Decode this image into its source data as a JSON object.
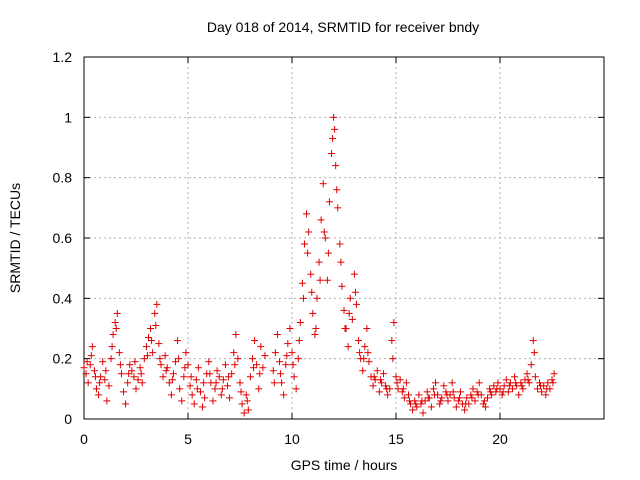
{
  "chart_data": {
    "type": "scatter",
    "title": "Day 018 of 2014, SRMTID for receiver bndy",
    "xlabel": "GPS time / hours",
    "ylabel": "SRMTID / TECUs",
    "xlim": [
      0,
      25
    ],
    "ylim": [
      0,
      1.2
    ],
    "x_ticks": [
      0,
      5,
      10,
      15,
      20
    ],
    "x_tick_labels": [
      "0",
      "5",
      "10",
      "15",
      "20"
    ],
    "y_ticks": [
      0,
      0.2,
      0.4,
      0.6,
      0.8,
      1.0,
      1.2
    ],
    "y_tick_labels": [
      "0",
      "0.2",
      "0.4",
      "0.6",
      "0.8",
      "1",
      "1.2"
    ],
    "grid": true,
    "marker": "+",
    "color": "#e00000",
    "series": [
      {
        "name": "SRMTID",
        "points": [
          [
            0.0,
            0.17
          ],
          [
            0.1,
            0.15
          ],
          [
            0.2,
            0.12
          ],
          [
            0.3,
            0.18
          ],
          [
            0.4,
            0.24
          ],
          [
            0.5,
            0.16
          ],
          [
            0.6,
            0.1
          ],
          [
            0.7,
            0.08
          ],
          [
            0.8,
            0.14
          ],
          [
            0.9,
            0.19
          ],
          [
            1.0,
            0.13
          ],
          [
            1.1,
            0.06
          ],
          [
            1.2,
            0.11
          ],
          [
            1.3,
            0.2
          ],
          [
            1.4,
            0.28
          ],
          [
            1.5,
            0.32
          ],
          [
            1.6,
            0.35
          ],
          [
            1.7,
            0.22
          ],
          [
            1.8,
            0.15
          ],
          [
            1.9,
            0.09
          ],
          [
            2.0,
            0.05
          ],
          [
            2.1,
            0.12
          ],
          [
            2.2,
            0.18
          ],
          [
            2.3,
            0.16
          ],
          [
            2.4,
            0.14
          ],
          [
            2.5,
            0.1
          ],
          [
            2.6,
            0.13
          ],
          [
            2.7,
            0.17
          ],
          [
            2.8,
            0.12
          ],
          [
            2.9,
            0.2
          ],
          [
            3.0,
            0.24
          ],
          [
            3.1,
            0.27
          ],
          [
            3.2,
            0.3
          ],
          [
            3.3,
            0.22
          ],
          [
            3.4,
            0.35
          ],
          [
            3.5,
            0.38
          ],
          [
            3.6,
            0.25
          ],
          [
            3.7,
            0.18
          ],
          [
            3.8,
            0.14
          ],
          [
            3.9,
            0.21
          ],
          [
            4.0,
            0.17
          ],
          [
            4.1,
            0.12
          ],
          [
            4.2,
            0.08
          ],
          [
            4.3,
            0.15
          ],
          [
            4.4,
            0.19
          ],
          [
            4.5,
            0.26
          ],
          [
            4.6,
            0.1
          ],
          [
            4.7,
            0.06
          ],
          [
            4.8,
            0.14
          ],
          [
            4.9,
            0.22
          ],
          [
            5.0,
            0.18
          ],
          [
            5.1,
            0.11
          ],
          [
            5.2,
            0.08
          ],
          [
            5.3,
            0.05
          ],
          [
            5.4,
            0.13
          ],
          [
            5.5,
            0.17
          ],
          [
            5.6,
            0.09
          ],
          [
            5.7,
            0.04
          ],
          [
            5.8,
            0.07
          ],
          [
            5.9,
            0.15
          ],
          [
            6.0,
            0.19
          ],
          [
            6.1,
            0.12
          ],
          [
            6.2,
            0.06
          ],
          [
            6.3,
            0.1
          ],
          [
            6.4,
            0.16
          ],
          [
            6.5,
            0.14
          ],
          [
            6.6,
            0.08
          ],
          [
            6.7,
            0.13
          ],
          [
            6.8,
            0.18
          ],
          [
            6.9,
            0.11
          ],
          [
            7.0,
            0.07
          ],
          [
            7.1,
            0.15
          ],
          [
            7.2,
            0.22
          ],
          [
            7.3,
            0.28
          ],
          [
            7.4,
            0.2
          ],
          [
            7.5,
            0.12
          ],
          [
            7.6,
            0.05
          ],
          [
            7.7,
            0.02
          ],
          [
            7.8,
            0.08
          ],
          [
            7.9,
            0.03
          ],
          [
            8.0,
            0.14
          ],
          [
            8.1,
            0.2
          ],
          [
            8.2,
            0.26
          ],
          [
            8.3,
            0.18
          ],
          [
            8.4,
            0.1
          ],
          [
            8.5,
            0.24
          ],
          [
            8.6,
            0.17
          ],
          [
            8.7,
            0.21
          ],
          [
            9.1,
            0.16
          ],
          [
            9.2,
            0.22
          ],
          [
            9.3,
            0.28
          ],
          [
            9.4,
            0.19
          ],
          [
            9.5,
            0.12
          ],
          [
            9.6,
            0.08
          ],
          [
            9.7,
            0.18
          ],
          [
            9.8,
            0.25
          ],
          [
            9.9,
            0.3
          ],
          [
            10.0,
            0.22
          ],
          [
            10.1,
            0.14
          ],
          [
            10.2,
            0.1
          ],
          [
            10.3,
            0.2
          ],
          [
            10.4,
            0.32
          ],
          [
            10.5,
            0.45
          ],
          [
            10.6,
            0.58
          ],
          [
            10.7,
            0.68
          ],
          [
            10.8,
            0.62
          ],
          [
            10.9,
            0.48
          ],
          [
            11.0,
            0.35
          ],
          [
            11.1,
            0.28
          ],
          [
            11.2,
            0.4
          ],
          [
            11.3,
            0.52
          ],
          [
            11.4,
            0.66
          ],
          [
            11.5,
            0.78
          ],
          [
            11.6,
            0.6
          ],
          [
            11.7,
            0.46
          ],
          [
            11.8,
            0.72
          ],
          [
            11.9,
            0.88
          ],
          [
            12.0,
            1.0
          ],
          [
            12.1,
            0.84
          ],
          [
            12.2,
            0.7
          ],
          [
            12.3,
            0.58
          ],
          [
            12.4,
            0.44
          ],
          [
            12.5,
            0.36
          ],
          [
            12.6,
            0.3
          ],
          [
            12.7,
            0.24
          ],
          [
            12.8,
            0.4
          ],
          [
            12.9,
            0.33
          ],
          [
            13.0,
            0.48
          ],
          [
            13.1,
            0.38
          ],
          [
            13.2,
            0.26
          ],
          [
            13.3,
            0.2
          ],
          [
            13.4,
            0.16
          ],
          [
            13.5,
            0.24
          ],
          [
            13.6,
            0.3
          ],
          [
            13.7,
            0.19
          ],
          [
            13.8,
            0.14
          ],
          [
            13.9,
            0.11
          ],
          [
            14.0,
            0.13
          ],
          [
            14.1,
            0.16
          ],
          [
            14.2,
            0.09
          ],
          [
            14.3,
            0.12
          ],
          [
            14.4,
            0.15
          ],
          [
            14.5,
            0.11
          ],
          [
            14.6,
            0.08
          ],
          [
            14.7,
            0.1
          ],
          [
            14.8,
            0.26
          ],
          [
            14.9,
            0.32
          ],
          [
            15.0,
            0.14
          ],
          [
            15.1,
            0.1
          ],
          [
            15.2,
            0.13
          ],
          [
            15.3,
            0.09
          ],
          [
            15.4,
            0.07
          ],
          [
            15.5,
            0.12
          ],
          [
            15.6,
            0.08
          ],
          [
            15.7,
            0.05
          ],
          [
            15.8,
            0.03
          ],
          [
            15.9,
            0.06
          ],
          [
            16.0,
            0.04
          ],
          [
            16.1,
            0.08
          ],
          [
            16.2,
            0.05
          ],
          [
            16.3,
            0.02
          ],
          [
            16.4,
            0.06
          ],
          [
            16.5,
            0.09
          ],
          [
            16.6,
            0.07
          ],
          [
            16.7,
            0.04
          ],
          [
            16.8,
            0.1
          ],
          [
            16.9,
            0.12
          ],
          [
            17.0,
            0.08
          ],
          [
            17.1,
            0.05
          ],
          [
            17.2,
            0.07
          ],
          [
            17.3,
            0.11
          ],
          [
            17.4,
            0.09
          ],
          [
            17.5,
            0.06
          ],
          [
            17.6,
            0.08
          ],
          [
            17.7,
            0.12
          ],
          [
            17.8,
            0.07
          ],
          [
            17.9,
            0.04
          ],
          [
            18.0,
            0.06
          ],
          [
            18.1,
            0.09
          ],
          [
            18.2,
            0.05
          ],
          [
            18.3,
            0.03
          ],
          [
            18.4,
            0.07
          ],
          [
            18.5,
            0.05
          ],
          [
            18.6,
            0.08
          ],
          [
            18.7,
            0.1
          ],
          [
            18.8,
            0.06
          ],
          [
            18.9,
            0.09
          ],
          [
            19.0,
            0.12
          ],
          [
            19.1,
            0.08
          ],
          [
            19.2,
            0.05
          ],
          [
            19.3,
            0.04
          ],
          [
            19.4,
            0.07
          ],
          [
            19.5,
            0.1
          ],
          [
            19.6,
            0.08
          ],
          [
            19.7,
            0.11
          ],
          [
            19.8,
            0.09
          ],
          [
            19.9,
            0.12
          ],
          [
            20.0,
            0.1
          ],
          [
            20.1,
            0.08
          ],
          [
            20.2,
            0.11
          ],
          [
            20.3,
            0.13
          ],
          [
            20.4,
            0.09
          ],
          [
            20.5,
            0.12
          ],
          [
            20.6,
            0.1
          ],
          [
            20.7,
            0.14
          ],
          [
            20.8,
            0.11
          ],
          [
            20.9,
            0.08
          ],
          [
            21.0,
            0.12
          ],
          [
            21.1,
            0.1
          ],
          [
            21.2,
            0.13
          ],
          [
            21.3,
            0.15
          ],
          [
            21.4,
            0.12
          ],
          [
            21.5,
            0.18
          ],
          [
            21.6,
            0.26
          ],
          [
            21.7,
            0.14
          ],
          [
            21.8,
            0.1
          ],
          [
            21.9,
            0.12
          ],
          [
            22.0,
            0.09
          ],
          [
            22.1,
            0.11
          ],
          [
            22.2,
            0.08
          ],
          [
            22.3,
            0.12
          ],
          [
            22.4,
            0.1
          ],
          [
            22.5,
            0.13
          ],
          [
            22.6,
            0.15
          ],
          [
            0.15,
            0.19
          ],
          [
            0.35,
            0.21
          ],
          [
            0.55,
            0.14
          ],
          [
            0.75,
            0.12
          ],
          [
            1.05,
            0.16
          ],
          [
            1.35,
            0.24
          ],
          [
            1.55,
            0.3
          ],
          [
            1.75,
            0.18
          ],
          [
            2.15,
            0.15
          ],
          [
            2.45,
            0.19
          ],
          [
            2.75,
            0.15
          ],
          [
            3.05,
            0.21
          ],
          [
            3.25,
            0.26
          ],
          [
            3.45,
            0.31
          ],
          [
            3.65,
            0.2
          ],
          [
            3.95,
            0.16
          ],
          [
            4.25,
            0.13
          ],
          [
            4.55,
            0.2
          ],
          [
            4.85,
            0.17
          ],
          [
            5.15,
            0.14
          ],
          [
            5.45,
            0.1
          ],
          [
            5.75,
            0.12
          ],
          [
            6.05,
            0.15
          ],
          [
            6.35,
            0.12
          ],
          [
            6.65,
            0.1
          ],
          [
            6.95,
            0.14
          ],
          [
            7.25,
            0.18
          ],
          [
            7.55,
            0.09
          ],
          [
            7.85,
            0.06
          ],
          [
            8.15,
            0.17
          ],
          [
            8.45,
            0.15
          ],
          [
            9.15,
            0.12
          ],
          [
            9.45,
            0.15
          ],
          [
            9.75,
            0.21
          ],
          [
            10.05,
            0.18
          ],
          [
            10.35,
            0.26
          ],
          [
            10.55,
            0.4
          ],
          [
            10.75,
            0.55
          ],
          [
            10.95,
            0.42
          ],
          [
            11.15,
            0.3
          ],
          [
            11.35,
            0.46
          ],
          [
            11.55,
            0.62
          ],
          [
            11.75,
            0.55
          ],
          [
            11.95,
            0.93
          ],
          [
            12.05,
            0.96
          ],
          [
            12.15,
            0.76
          ],
          [
            12.35,
            0.52
          ],
          [
            12.55,
            0.3
          ],
          [
            12.75,
            0.35
          ],
          [
            13.05,
            0.42
          ],
          [
            13.25,
            0.22
          ],
          [
            13.45,
            0.2
          ],
          [
            13.65,
            0.22
          ],
          [
            13.95,
            0.14
          ],
          [
            14.25,
            0.13
          ],
          [
            14.55,
            0.1
          ],
          [
            14.85,
            0.2
          ],
          [
            15.05,
            0.12
          ],
          [
            15.35,
            0.1
          ],
          [
            15.65,
            0.06
          ],
          [
            15.95,
            0.05
          ],
          [
            16.25,
            0.06
          ],
          [
            16.55,
            0.07
          ],
          [
            16.85,
            0.08
          ],
          [
            17.15,
            0.06
          ],
          [
            17.45,
            0.08
          ],
          [
            17.75,
            0.09
          ],
          [
            18.05,
            0.07
          ],
          [
            18.35,
            0.05
          ],
          [
            18.65,
            0.07
          ],
          [
            18.95,
            0.08
          ],
          [
            19.25,
            0.06
          ],
          [
            19.55,
            0.09
          ],
          [
            19.85,
            0.1
          ],
          [
            20.15,
            0.09
          ],
          [
            20.45,
            0.11
          ],
          [
            20.75,
            0.12
          ],
          [
            21.05,
            0.11
          ],
          [
            21.35,
            0.13
          ],
          [
            21.65,
            0.22
          ],
          [
            21.95,
            0.11
          ],
          [
            22.25,
            0.1
          ],
          [
            22.55,
            0.12
          ]
        ]
      }
    ]
  }
}
